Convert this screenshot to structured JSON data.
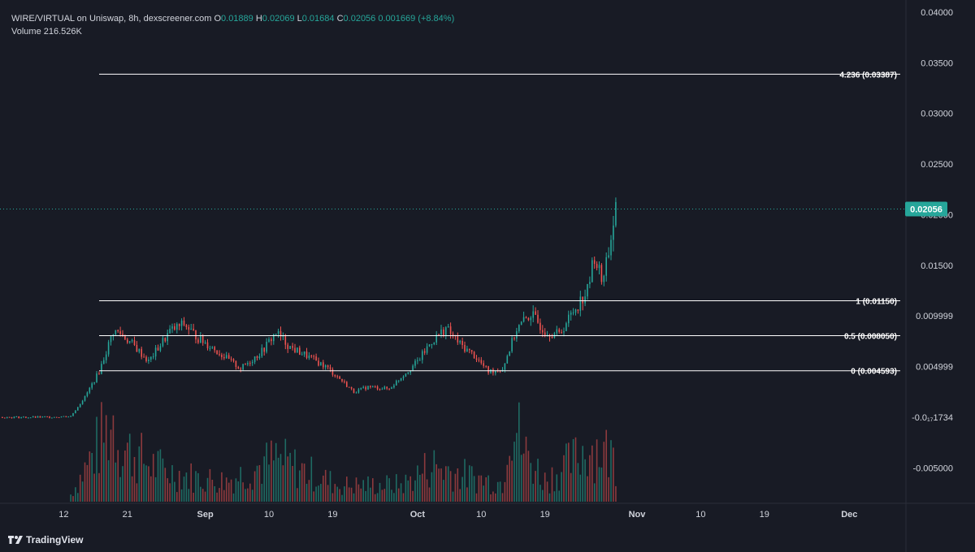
{
  "legend": {
    "symbol": "WIRE/VIRTUAL on Uniswap, 8h, dexscreener.com",
    "open_label": "O",
    "open": "0.01889",
    "high_label": "H",
    "high": "0.02069",
    "low_label": "L",
    "low": "0.01684",
    "close_label": "C",
    "close": "0.02056",
    "change": "0.001669 (+8.84%)",
    "volume_label": "Volume",
    "volume": "216.526K"
  },
  "watermark": {
    "text": "TradingView",
    "icon": "tradingview-logo-icon"
  },
  "colors": {
    "background": "#181b25",
    "up": "#26a69a",
    "down": "#ef5350",
    "up_volume": "#1f6b63",
    "down_volume": "#8c3a3d",
    "axis_text": "#d1d4dc",
    "fib_line": "#ffffff",
    "last_price_bg": "#26a69a"
  },
  "last_price": {
    "value": 0.02056,
    "label": "0.02056"
  },
  "price_axis_labels": [
    "0.04000",
    "0.03500",
    "0.03000",
    "0.02500",
    "0.02000",
    "0.01500",
    "0.009999",
    "0.004999",
    "-0.0₁₇1734",
    "-0.005000"
  ],
  "time_axis_labels": [
    "12",
    "21",
    "Sep",
    "10",
    "19",
    "Oct",
    "10",
    "19",
    "Nov",
    "10",
    "19",
    "Dec"
  ],
  "chart_data": {
    "type": "candlestick",
    "title": "WIRE/VIRTUAL on Uniswap, 8h, dexscreener.com",
    "interval": "8h",
    "ylim": [
      -0.0085,
      0.0412
    ],
    "x_range": [
      "Aug 3",
      "Dec 9"
    ],
    "fib_levels": [
      {
        "ratio": "4.236",
        "value": 0.03387,
        "label": "4.236 (0.03387)"
      },
      {
        "ratio": "1",
        "value": 0.0115,
        "label": "1 (0.01150)"
      },
      {
        "ratio": "0.5",
        "value": 0.00805,
        "label": "0.5 (0.008050)"
      },
      {
        "ratio": "0",
        "value": 0.004593,
        "label": "0 (0.004593)"
      }
    ],
    "price_series": [
      [
        "Aug 3",
        0.0
      ],
      [
        "Aug 9",
        0.0
      ],
      [
        "Aug 13",
        0.0001
      ],
      [
        "Aug 15",
        0.002
      ],
      [
        "Aug 17",
        0.0045
      ],
      [
        "Aug 19",
        0.0085
      ],
      [
        "Aug 20",
        0.0083
      ],
      [
        "Aug 22",
        0.007
      ],
      [
        "Aug 24",
        0.0055
      ],
      [
        "Aug 27",
        0.0085
      ],
      [
        "Aug 29",
        0.0092
      ],
      [
        "Aug 31",
        0.0078
      ],
      [
        "Sep 2",
        0.0069
      ],
      [
        "Sep 4",
        0.0058
      ],
      [
        "Sep 6",
        0.0048
      ],
      [
        "Sep 9",
        0.0065
      ],
      [
        "Sep 11",
        0.0084
      ],
      [
        "Sep 13",
        0.0069
      ],
      [
        "Sep 15",
        0.0062
      ],
      [
        "Sep 18",
        0.005
      ],
      [
        "Sep 20",
        0.0038
      ],
      [
        "Sep 22",
        0.0025
      ],
      [
        "Sep 24",
        0.003
      ],
      [
        "Sep 27",
        0.0028
      ],
      [
        "Sep 29",
        0.0042
      ],
      [
        "Oct 1",
        0.0055
      ],
      [
        "Oct 3",
        0.0075
      ],
      [
        "Oct 5",
        0.0088
      ],
      [
        "Oct 7",
        0.0072
      ],
      [
        "Oct 9",
        0.0061
      ],
      [
        "Oct 11",
        0.0045
      ],
      [
        "Oct 13",
        0.0048
      ],
      [
        "Oct 15",
        0.0087
      ],
      [
        "Oct 17",
        0.0102
      ],
      [
        "Oct 19",
        0.0085
      ],
      [
        "Oct 21",
        0.0082
      ],
      [
        "Oct 23",
        0.0105
      ],
      [
        "Oct 25",
        0.0125
      ],
      [
        "Oct 26",
        0.016
      ],
      [
        "Oct 27",
        0.0135
      ],
      [
        "Oct 28",
        0.0165
      ],
      [
        "Oct 29",
        0.0205
      ]
    ],
    "volume_series": [
      [
        "Aug 13",
        80
      ],
      [
        "Aug 18",
        780
      ],
      [
        "Aug 19",
        900
      ],
      [
        "Aug 20",
        620
      ],
      [
        "Aug 22",
        530
      ],
      [
        "Aug 24",
        420
      ],
      [
        "Aug 27",
        330
      ],
      [
        "Aug 31",
        260
      ],
      [
        "Sep 4",
        230
      ],
      [
        "Sep 11",
        470
      ],
      [
        "Sep 20",
        180
      ],
      [
        "Sep 29",
        190
      ],
      [
        "Oct 3",
        410
      ],
      [
        "Oct 9",
        260
      ],
      [
        "Oct 13",
        210
      ],
      [
        "Oct 14",
        1050
      ],
      [
        "Oct 16",
        560
      ],
      [
        "Oct 19",
        240
      ],
      [
        "Oct 23",
        450
      ],
      [
        "Oct 25",
        620
      ],
      [
        "Oct 27",
        580
      ],
      [
        "Oct 29",
        480
      ]
    ]
  }
}
